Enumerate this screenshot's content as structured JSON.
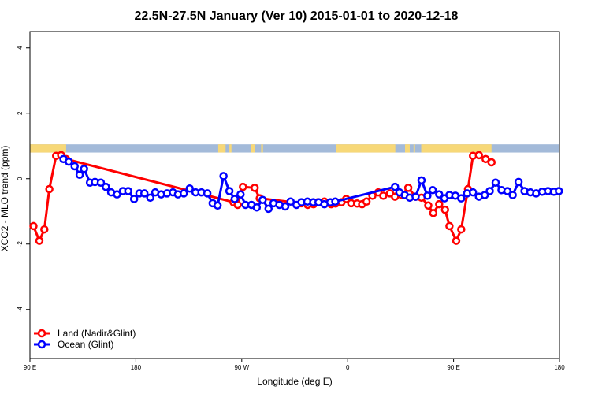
{
  "chart_data": {
    "type": "line",
    "title": "22.5N-27.5N January (Ver 10)   2015-01-01 to 2020-12-18",
    "xlabel": "Longitude (deg E)",
    "ylabel": "XCO2 - MLO trend (ppm)",
    "xlim": [
      90,
      270
    ],
    "ylim": [
      -5.5,
      4.5
    ],
    "x_ticks": [
      {
        "value": 90,
        "label": "90 E"
      },
      {
        "value": 126,
        "label": "180"
      },
      {
        "value": 162,
        "label": "90 W"
      },
      {
        "value": 198,
        "label": "0"
      },
      {
        "value": 234,
        "label": "90 E"
      },
      {
        "value": 270,
        "label": "180"
      }
    ],
    "y_ticks": [
      {
        "value": 4,
        "label": "4"
      },
      {
        "value": 2,
        "label": "2"
      },
      {
        "value": 0,
        "label": "0"
      },
      {
        "value": -2,
        "label": "-2"
      },
      {
        "value": -4,
        "label": "-4"
      }
    ],
    "colors": {
      "land": "#ff0000",
      "ocean": "#0000ff",
      "surface_ocean": "#a3bad9",
      "surface_land": "#f7d878"
    },
    "surface_band": {
      "y_range": [
        0.8,
        1.05
      ],
      "land_segments": [
        [
          90,
          102.3
        ],
        [
          154,
          156.5
        ],
        [
          157.8,
          158.5
        ],
        [
          165,
          166.4
        ],
        [
          168.6,
          169.2
        ],
        [
          194,
          214.2
        ],
        [
          217.5,
          219.1
        ],
        [
          220.4,
          220.9
        ],
        [
          223,
          246.9
        ]
      ]
    },
    "series": [
      {
        "name": "Land (Nadir&Glint)",
        "color": "#ff0000",
        "x": [
          91.2,
          93.2,
          94.9,
          96.6,
          98.9,
          100.6,
          102.3,
          159.2,
          160.6,
          162.4,
          166.4,
          168.1,
          182.2,
          184.4,
          186.4,
          187.9,
          190.1,
          192.4,
          193.9,
          195.9,
          197.5,
          199.2,
          201.2,
          202.9,
          204.4,
          206.4,
          208.4,
          210.1,
          212.4,
          214.1,
          216.4,
          218.6,
          221.1,
          223.1,
          225.4,
          227.1,
          229.1,
          231.1,
          232.6,
          234.9,
          236.6,
          238.9,
          240.6,
          242.6,
          244.9,
          246.9
        ],
        "y": [
          -1.45,
          -1.9,
          -1.55,
          -0.32,
          0.7,
          0.72,
          0.6,
          -0.72,
          -0.8,
          -0.25,
          -0.28,
          -0.6,
          -0.75,
          -0.8,
          -0.78,
          -0.72,
          -0.7,
          -0.78,
          -0.76,
          -0.72,
          -0.62,
          -0.75,
          -0.76,
          -0.78,
          -0.7,
          -0.52,
          -0.42,
          -0.52,
          -0.45,
          -0.55,
          -0.5,
          -0.28,
          -0.55,
          -0.58,
          -0.82,
          -1.05,
          -0.78,
          -0.95,
          -1.45,
          -1.9,
          -1.55,
          -0.32,
          0.7,
          0.72,
          0.6,
          0.5
        ]
      },
      {
        "name": "Ocean (Glint)",
        "color": "#0000ff",
        "x": [
          101.4,
          103.2,
          105.2,
          106.9,
          108.4,
          110.4,
          112.1,
          114.1,
          115.8,
          117.6,
          119.6,
          121.6,
          123.4,
          125.4,
          127.2,
          128.9,
          130.9,
          132.6,
          134.6,
          136.6,
          138.6,
          140.3,
          142.3,
          144.3,
          146.3,
          148.3,
          150.3,
          152.1,
          153.8,
          155.8,
          157.8,
          159.6,
          161.6,
          163.3,
          165.3,
          167.1,
          169.1,
          171.1,
          172.8,
          174.8,
          176.8,
          178.6,
          180.6,
          182.3,
          184.3,
          186.3,
          188.1,
          190.1,
          192.1,
          193.8,
          214.1,
          215.6,
          217.4,
          219.1,
          221.1,
          223.1,
          225.1,
          226.9,
          229.1,
          230.9,
          232.6,
          234.6,
          236.6,
          238.6,
          240.6,
          242.6,
          244.6,
          246.3,
          248.3,
          250.3,
          252.3,
          254.1,
          256.1,
          258.1,
          260.1,
          262.1,
          264.1,
          266.1,
          268.1,
          269.8
        ],
        "y": [
          0.6,
          0.52,
          0.38,
          0.12,
          0.3,
          -0.12,
          -0.1,
          -0.12,
          -0.25,
          -0.42,
          -0.48,
          -0.38,
          -0.38,
          -0.62,
          -0.45,
          -0.45,
          -0.58,
          -0.42,
          -0.48,
          -0.45,
          -0.42,
          -0.48,
          -0.45,
          -0.3,
          -0.42,
          -0.42,
          -0.45,
          -0.75,
          -0.82,
          0.08,
          -0.38,
          -0.62,
          -0.48,
          -0.8,
          -0.8,
          -0.88,
          -0.65,
          -0.92,
          -0.75,
          -0.8,
          -0.85,
          -0.7,
          -0.8,
          -0.72,
          -0.7,
          -0.72,
          -0.72,
          -0.78,
          -0.72,
          -0.7,
          -0.25,
          -0.42,
          -0.5,
          -0.58,
          -0.55,
          -0.05,
          -0.52,
          -0.35,
          -0.48,
          -0.6,
          -0.5,
          -0.52,
          -0.6,
          -0.45,
          -0.42,
          -0.55,
          -0.5,
          -0.38,
          -0.12,
          -0.35,
          -0.38,
          -0.5,
          -0.1,
          -0.38,
          -0.42,
          -0.45,
          -0.4,
          -0.38,
          -0.4,
          -0.38
        ]
      }
    ],
    "legend": {
      "position": "bottom-left",
      "entries": [
        {
          "label": "Land (Nadir&Glint)",
          "color": "#ff0000"
        },
        {
          "label": "Ocean (Glint)",
          "color": "#0000ff"
        }
      ]
    }
  }
}
